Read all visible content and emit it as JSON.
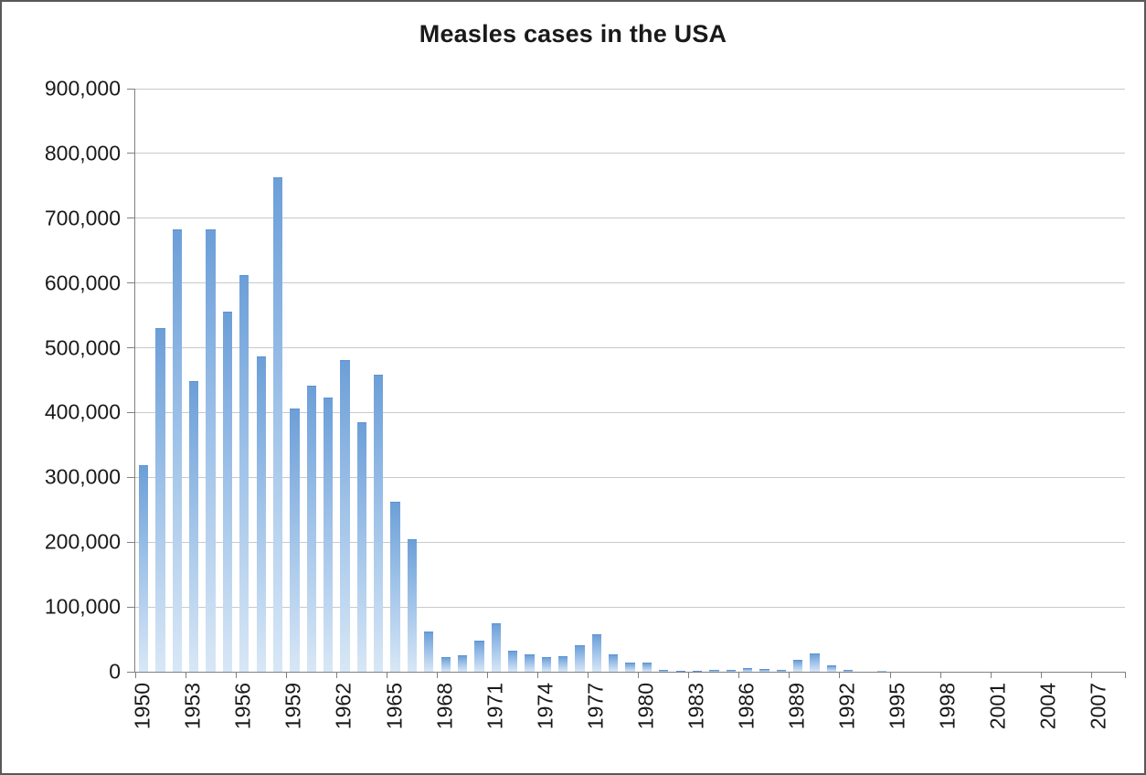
{
  "chart_data": {
    "type": "bar",
    "title": "Measles cases in the USA",
    "start_year": 1950,
    "end_year": 2008,
    "values": [
      319124,
      530118,
      683077,
      449146,
      682720,
      555156,
      611936,
      486799,
      763094,
      406162,
      441703,
      423919,
      481530,
      385156,
      458083,
      261904,
      204136,
      62705,
      22231,
      25826,
      47351,
      75290,
      32275,
      26690,
      22094,
      24374,
      41126,
      57345,
      26871,
      13597,
      13506,
      3124,
      1714,
      1497,
      2587,
      2822,
      6282,
      3655,
      3396,
      18193,
      27786,
      9643,
      2237,
      312,
      963,
      309,
      508,
      138,
      100,
      100,
      86,
      116,
      44,
      56,
      37,
      66,
      55,
      43,
      140
    ],
    "ylim": [
      0,
      900000
    ],
    "ytick_step": 100000,
    "ytick_labels_top_to_bottom": [
      "900,000",
      "800,000",
      "700,000",
      "600,000",
      "500,000",
      "400,000",
      "300,000",
      "200,000",
      "100,000",
      "0"
    ],
    "xtick_labels": [
      "1950",
      "1953",
      "1956",
      "1959",
      "1962",
      "1965",
      "1968",
      "1971",
      "1974",
      "1977",
      "1980",
      "1983",
      "1986",
      "1989",
      "1992",
      "1995",
      "1998",
      "2001",
      "2004",
      "2007"
    ],
    "grid": true,
    "legend": "none",
    "bar_gradient": [
      "#6c9fd8",
      "#9dc1e8",
      "#d8e7f6"
    ],
    "gridline_color": "#c9c9c9",
    "axis_color": "#808080",
    "text_color": "#1a1a1a",
    "frame_border_color": "#595959"
  }
}
